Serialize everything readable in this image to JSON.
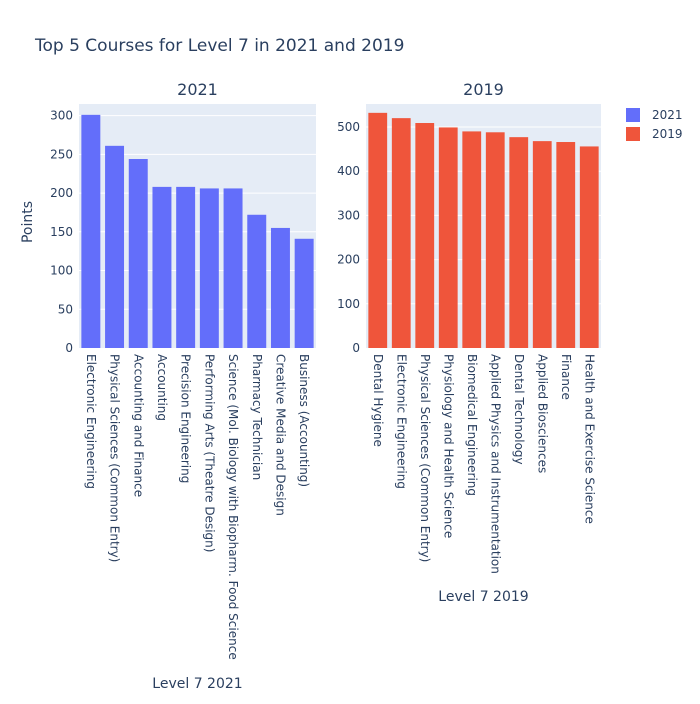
{
  "title": "Top 5 Courses for Level 7 in 2021 and 2019",
  "legend": {
    "placement": "top-right",
    "items": [
      {
        "name": "2021",
        "color": "#636efa"
      },
      {
        "name": "2019",
        "color": "#ef553b"
      }
    ]
  },
  "chart_data": [
    {
      "type": "bar",
      "subplot_title": "2021",
      "xlabel": "Level 7 2021",
      "ylabel": "Points",
      "ylim": [
        0,
        315
      ],
      "yticks": [
        0,
        50,
        100,
        150,
        200,
        250,
        300
      ],
      "grid": true,
      "color": "#636efa",
      "series": [
        {
          "name": "2021",
          "categories": [
            "Electronic Engineering",
            "Physical Sciences (Common Entry)",
            "Accounting and Finance",
            "Accounting",
            "Precision Engineering",
            "Performing Arts (Theatre Design)",
            "Science (Mol. Biology with Biopharm. Food Science",
            "Pharmacy Technician",
            "Creative Media and Design",
            "Business (Accounting)"
          ],
          "values": [
            301,
            261,
            244,
            208,
            208,
            206,
            206,
            172,
            155,
            141
          ]
        }
      ]
    },
    {
      "type": "bar",
      "subplot_title": "2019",
      "xlabel": "Level 7 2019",
      "ylabel": "",
      "ylim": [
        0,
        552
      ],
      "yticks": [
        0,
        100,
        200,
        300,
        400,
        500
      ],
      "grid": true,
      "color": "#ef553b",
      "series": [
        {
          "name": "2019",
          "categories": [
            "Dental Hygiene",
            "Electronic Engineering",
            "Physical Sciences (Common Entry)",
            "Physiology and Health Science",
            "Biomedical Engineering",
            "Applied Physics and Instrumentation",
            "Dental Technology",
            "Applied Biosciences",
            "Finance",
            "Health and Exercise Science"
          ],
          "values": [
            532,
            520,
            509,
            499,
            490,
            488,
            477,
            468,
            466,
            456
          ]
        }
      ]
    }
  ]
}
